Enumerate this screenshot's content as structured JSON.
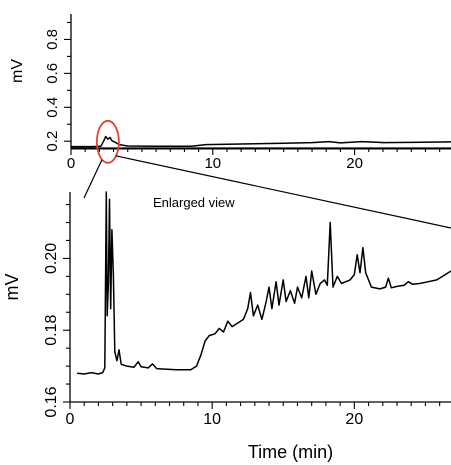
{
  "chart_data": [
    {
      "type": "line",
      "panel": "overview",
      "ylabel": "mV",
      "xlabel": "",
      "xlim": [
        0,
        26.8
      ],
      "ylim": [
        0.16,
        0.95
      ],
      "x_ticks": [
        0,
        10,
        20
      ],
      "y_ticks": [
        0.2,
        0.4,
        0.6,
        0.8
      ],
      "x_minor_step": 1,
      "y_minor_step": 0.1,
      "x_tick_labels": [
        "0",
        "10",
        "20"
      ],
      "y_tick_labels": [
        "0.2",
        "0.4",
        "0.6",
        "0.8"
      ],
      "baseline_y": 0.19,
      "series": [
        {
          "values": [
            [
              0.0,
              0.168
            ],
            [
              1.5,
              0.168
            ],
            [
              2.1,
              0.17
            ],
            [
              2.3,
              0.2
            ],
            [
              2.45,
              0.228
            ],
            [
              2.6,
              0.212
            ],
            [
              2.75,
              0.222
            ],
            [
              2.9,
              0.202
            ],
            [
              3.1,
              0.195
            ],
            [
              3.4,
              0.18
            ],
            [
              4.0,
              0.172
            ],
            [
              6.0,
              0.17
            ],
            [
              8.5,
              0.17
            ],
            [
              9.5,
              0.18
            ],
            [
              11.0,
              0.182
            ],
            [
              13.0,
              0.185
            ],
            [
              15.0,
              0.188
            ],
            [
              17.0,
              0.192
            ],
            [
              18.2,
              0.198
            ],
            [
              19.0,
              0.19
            ],
            [
              20.5,
              0.198
            ],
            [
              22.0,
              0.192
            ],
            [
              24.0,
              0.193
            ],
            [
              26.8,
              0.196
            ]
          ]
        }
      ],
      "highlight_ellipse": {
        "x_center": 2.6,
        "y_center": 0.22,
        "color": "#e0462e"
      }
    },
    {
      "type": "line",
      "panel": "enlarged",
      "annotation": "Enlarged view",
      "ylabel": "mV",
      "xlabel": "Time (min)",
      "xlim": [
        0,
        26.8
      ],
      "ylim": [
        0.16,
        0.2185
      ],
      "x_ticks": [
        0,
        10,
        20
      ],
      "y_ticks": [
        0.16,
        0.18,
        0.2
      ],
      "x_minor_step": 1,
      "y_minor_step": 0.005,
      "x_tick_labels": [
        "0",
        "10",
        "20"
      ],
      "y_tick_labels": [
        "0.16",
        "0.18",
        "0.20"
      ],
      "series": [
        {
          "values": [
            [
              0.5,
              0.168
            ],
            [
              1.0,
              0.1678
            ],
            [
              1.5,
              0.1682
            ],
            [
              2.0,
              0.1678
            ],
            [
              2.3,
              0.1682
            ],
            [
              2.45,
              0.1695
            ],
            [
              2.55,
              0.2185
            ],
            [
              2.62,
              0.184
            ],
            [
              2.7,
              0.193
            ],
            [
              2.78,
              0.2165
            ],
            [
              2.86,
              0.186
            ],
            [
              2.95,
              0.208
            ],
            [
              3.05,
              0.195
            ],
            [
              3.15,
              0.174
            ],
            [
              3.3,
              0.1715
            ],
            [
              3.45,
              0.1745
            ],
            [
              3.6,
              0.1705
            ],
            [
              4.0,
              0.17
            ],
            [
              4.5,
              0.1697
            ],
            [
              4.8,
              0.1712
            ],
            [
              5.0,
              0.1698
            ],
            [
              5.5,
              0.1695
            ],
            [
              5.8,
              0.1706
            ],
            [
              6.1,
              0.1693
            ],
            [
              6.5,
              0.1692
            ],
            [
              7.5,
              0.169
            ],
            [
              8.5,
              0.169
            ],
            [
              8.9,
              0.17
            ],
            [
              9.2,
              0.173
            ],
            [
              9.5,
              0.177
            ],
            [
              9.8,
              0.1785
            ],
            [
              10.2,
              0.179
            ],
            [
              10.5,
              0.1805
            ],
            [
              10.8,
              0.1795
            ],
            [
              11.1,
              0.1825
            ],
            [
              11.4,
              0.181
            ],
            [
              11.8,
              0.182
            ],
            [
              12.2,
              0.183
            ],
            [
              12.5,
              0.186
            ],
            [
              12.7,
              0.1905
            ],
            [
              12.9,
              0.184
            ],
            [
              13.2,
              0.187
            ],
            [
              13.5,
              0.183
            ],
            [
              13.8,
              0.188
            ],
            [
              14.0,
              0.192
            ],
            [
              14.2,
              0.186
            ],
            [
              14.5,
              0.1935
            ],
            [
              14.7,
              0.187
            ],
            [
              15.0,
              0.194
            ],
            [
              15.2,
              0.188
            ],
            [
              15.5,
              0.191
            ],
            [
              15.8,
              0.1875
            ],
            [
              16.0,
              0.192
            ],
            [
              16.3,
              0.189
            ],
            [
              16.6,
              0.195
            ],
            [
              16.8,
              0.189
            ],
            [
              17.0,
              0.1965
            ],
            [
              17.3,
              0.19
            ],
            [
              17.6,
              0.193
            ],
            [
              17.9,
              0.194
            ],
            [
              18.1,
              0.1925
            ],
            [
              18.3,
              0.21
            ],
            [
              18.5,
              0.192
            ],
            [
              18.8,
              0.195
            ],
            [
              19.1,
              0.193
            ],
            [
              19.4,
              0.1935
            ],
            [
              19.7,
              0.194
            ],
            [
              20.0,
              0.1955
            ],
            [
              20.2,
              0.201
            ],
            [
              20.4,
              0.196
            ],
            [
              20.6,
              0.203
            ],
            [
              20.8,
              0.196
            ],
            [
              21.2,
              0.192
            ],
            [
              21.8,
              0.1915
            ],
            [
              22.2,
              0.192
            ],
            [
              22.4,
              0.1945
            ],
            [
              22.6,
              0.1918
            ],
            [
              23.0,
              0.1922
            ],
            [
              23.5,
              0.1925
            ],
            [
              23.8,
              0.1935
            ],
            [
              24.1,
              0.1928
            ],
            [
              24.6,
              0.193
            ],
            [
              25.2,
              0.1935
            ],
            [
              25.8,
              0.194
            ],
            [
              26.4,
              0.1955
            ],
            [
              26.8,
              0.1965
            ]
          ]
        }
      ]
    }
  ]
}
